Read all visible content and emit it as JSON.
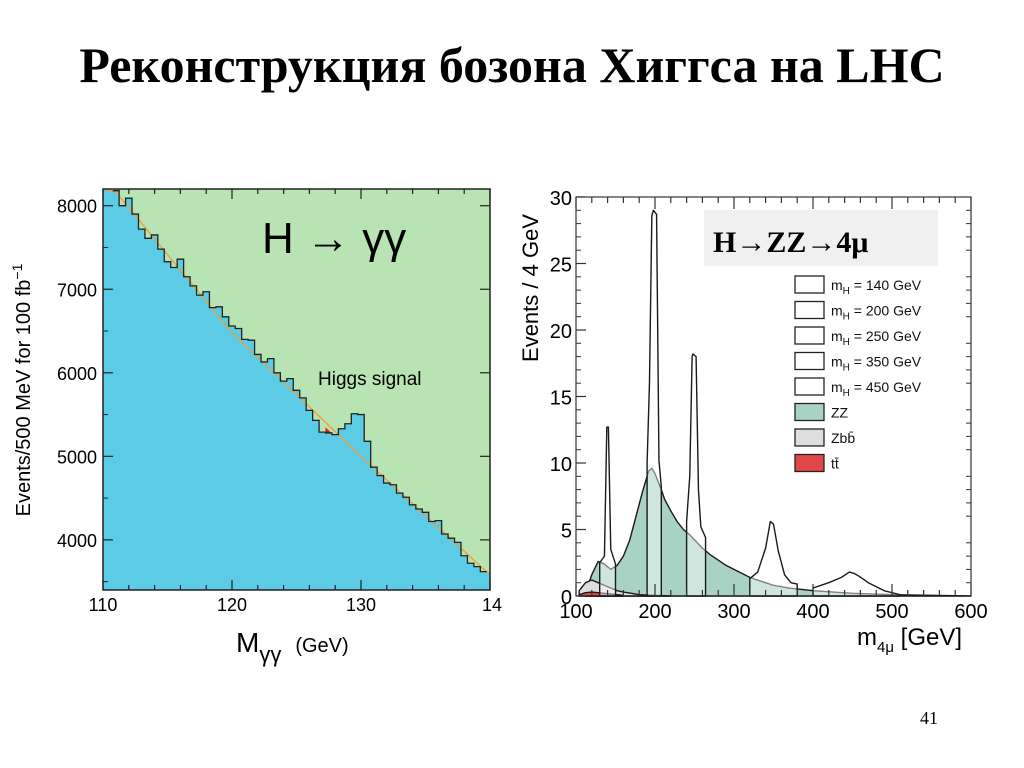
{
  "slide": {
    "title": "Реконструкция бозона Хиггса на LHC",
    "page_number": "41"
  },
  "chart_data": [
    {
      "type": "area",
      "annotation": "H → γγ",
      "signal_label": "Higgs  signal",
      "xlabel_main": "M",
      "xlabel_sub": "γγ",
      "xlabel_unit": "(GeV)",
      "ylabel": "Events/500 MeV for 100 fb",
      "ylabel_sup": "−1",
      "xlim": [
        110,
        140
      ],
      "ylim": [
        3400,
        8200
      ],
      "xticks": [
        110,
        120,
        130
      ],
      "xtick_partial": "14",
      "yticks": [
        4000,
        5000,
        6000,
        7000,
        8000
      ],
      "colors": {
        "background": "#b8e3b2",
        "signal": "#ee1111",
        "fill": "#5ccbe6",
        "fit": "#e8a040"
      },
      "background_fit": {
        "x": [
          110,
          120,
          130,
          140
        ],
        "y": [
          8350,
          6480,
          5000,
          3580
        ]
      },
      "data": {
        "x": [
          111,
          111.5,
          112,
          112.5,
          113,
          113.5,
          114,
          114.5,
          115,
          115.5,
          116,
          116.5,
          117,
          117.5,
          118,
          118.5,
          119,
          119.5,
          120,
          120.5,
          121,
          121.5,
          122,
          122.5,
          123,
          123.5,
          124,
          124.5,
          125,
          125.5,
          126,
          126.5,
          127,
          127.5,
          128,
          128.5,
          129,
          129.5,
          130,
          130.5,
          131,
          131.5,
          132,
          132.5,
          133,
          133.5,
          134,
          134.5,
          135,
          135.5,
          136,
          136.5,
          137,
          137.5,
          138,
          138.5,
          139,
          139.5
        ],
        "y": [
          8180,
          8000,
          8090,
          7900,
          7720,
          7610,
          7650,
          7480,
          7330,
          7260,
          7360,
          7150,
          7040,
          6930,
          6970,
          6780,
          6790,
          6670,
          6560,
          6530,
          6400,
          6390,
          6220,
          6130,
          6170,
          6000,
          5900,
          5930,
          5790,
          5700,
          5550,
          5430,
          5290,
          5280,
          5260,
          5330,
          5390,
          5510,
          5500,
          5180,
          4870,
          4770,
          4680,
          4660,
          4560,
          4510,
          4420,
          4370,
          4330,
          4220,
          4230,
          4070,
          4020,
          3970,
          3810,
          3720,
          3680,
          3620
        ]
      },
      "signal_region": [
        127.5,
        131
      ]
    },
    {
      "type": "area",
      "annotation": "H→ZZ→4μ",
      "xlabel": "m",
      "xlabel_sub": "4μ",
      "xlabel_unit": " [GeV]",
      "ylabel": "Events / 4 GeV",
      "xlim": [
        100,
        600
      ],
      "ylim": [
        0,
        30
      ],
      "xticks": [
        100,
        200,
        300,
        400,
        500,
        600
      ],
      "yticks": [
        0,
        5,
        10,
        15,
        20,
        25,
        30
      ],
      "legend_placement": "right",
      "colors": {
        "zz": "#a8d2c4",
        "zbb": "#dedede",
        "tt": "#e04848"
      },
      "legend": [
        {
          "label": "m",
          "sub": "H",
          "value": " = 140 GeV",
          "style": "open"
        },
        {
          "label": "m",
          "sub": "H",
          "value": " = 200 GeV",
          "style": "open"
        },
        {
          "label": "m",
          "sub": "H",
          "value": " = 250 GeV",
          "style": "open"
        },
        {
          "label": "m",
          "sub": "H",
          "value": " = 350 GeV",
          "style": "open"
        },
        {
          "label": "m",
          "sub": "H",
          "value": " = 450 GeV",
          "style": "open"
        },
        {
          "label": "ZZ",
          "sub": "",
          "value": "",
          "style": "zz"
        },
        {
          "label": "Zbb̄",
          "sub": "",
          "value": "",
          "style": "zbb"
        },
        {
          "label": "tt̄",
          "sub": "",
          "value": "",
          "style": "tt"
        }
      ],
      "series": [
        {
          "name": "ZZ",
          "x": [
            112,
            120,
            128,
            136,
            144,
            152,
            160,
            168,
            176,
            184,
            192,
            196,
            200,
            204,
            208,
            212,
            220,
            228,
            236,
            244,
            252,
            260,
            270,
            280,
            290,
            300,
            310,
            320,
            330,
            340,
            350,
            370,
            400,
            450,
            500,
            600
          ],
          "y": [
            0.3,
            1.6,
            2.6,
            2.4,
            2.0,
            2.3,
            3.0,
            4.2,
            6.0,
            7.8,
            9.4,
            9.6,
            9.2,
            8.6,
            8.0,
            7.3,
            6.4,
            5.6,
            5.0,
            4.6,
            4.1,
            3.6,
            3.1,
            2.7,
            2.3,
            2.0,
            1.7,
            1.4,
            1.2,
            1.0,
            0.8,
            0.6,
            0.4,
            0.2,
            0.1,
            0.0
          ]
        },
        {
          "name": "Zbb̄",
          "x": [
            104,
            112,
            120,
            128,
            136,
            144,
            152,
            160,
            170,
            180,
            200,
            220
          ],
          "y": [
            0.4,
            1.0,
            1.2,
            1.0,
            0.8,
            0.6,
            0.4,
            0.3,
            0.2,
            0.1,
            0.05,
            0.0
          ]
        },
        {
          "name": "tt̄",
          "x": [
            104,
            112,
            120,
            128,
            136,
            144,
            152,
            160
          ],
          "y": [
            0.1,
            0.25,
            0.3,
            0.25,
            0.2,
            0.15,
            0.1,
            0.05
          ]
        },
        {
          "name": "m = 140 GeV",
          "x": [
            130,
            136,
            139,
            141,
            144,
            150
          ],
          "y": [
            2.5,
            3.0,
            12.7,
            12.7,
            3.5,
            2.4
          ]
        },
        {
          "name": "m = 200 GeV",
          "x": [
            190,
            193,
            196,
            198,
            202,
            205,
            208
          ],
          "y": [
            10.0,
            16.0,
            28.6,
            29.0,
            28.7,
            10.2,
            8.2
          ]
        },
        {
          "name": "m = 250 GeV",
          "x": [
            240,
            244,
            247,
            248,
            252,
            255,
            258,
            264
          ],
          "y": [
            5.6,
            9.0,
            18.0,
            18.2,
            18.0,
            8.0,
            5.2,
            4.4
          ]
        },
        {
          "name": "m = 350 GeV",
          "x": [
            320,
            330,
            340,
            346,
            350,
            356,
            364,
            372,
            380
          ],
          "y": [
            1.3,
            1.8,
            3.6,
            5.6,
            5.4,
            3.4,
            1.6,
            1.0,
            0.9
          ]
        },
        {
          "name": "m = 450 GeV",
          "x": [
            400,
            420,
            436,
            446,
            452,
            458,
            470,
            490,
            510
          ],
          "y": [
            0.6,
            1.0,
            1.4,
            1.8,
            1.7,
            1.5,
            1.0,
            0.4,
            0.1
          ]
        }
      ]
    }
  ]
}
